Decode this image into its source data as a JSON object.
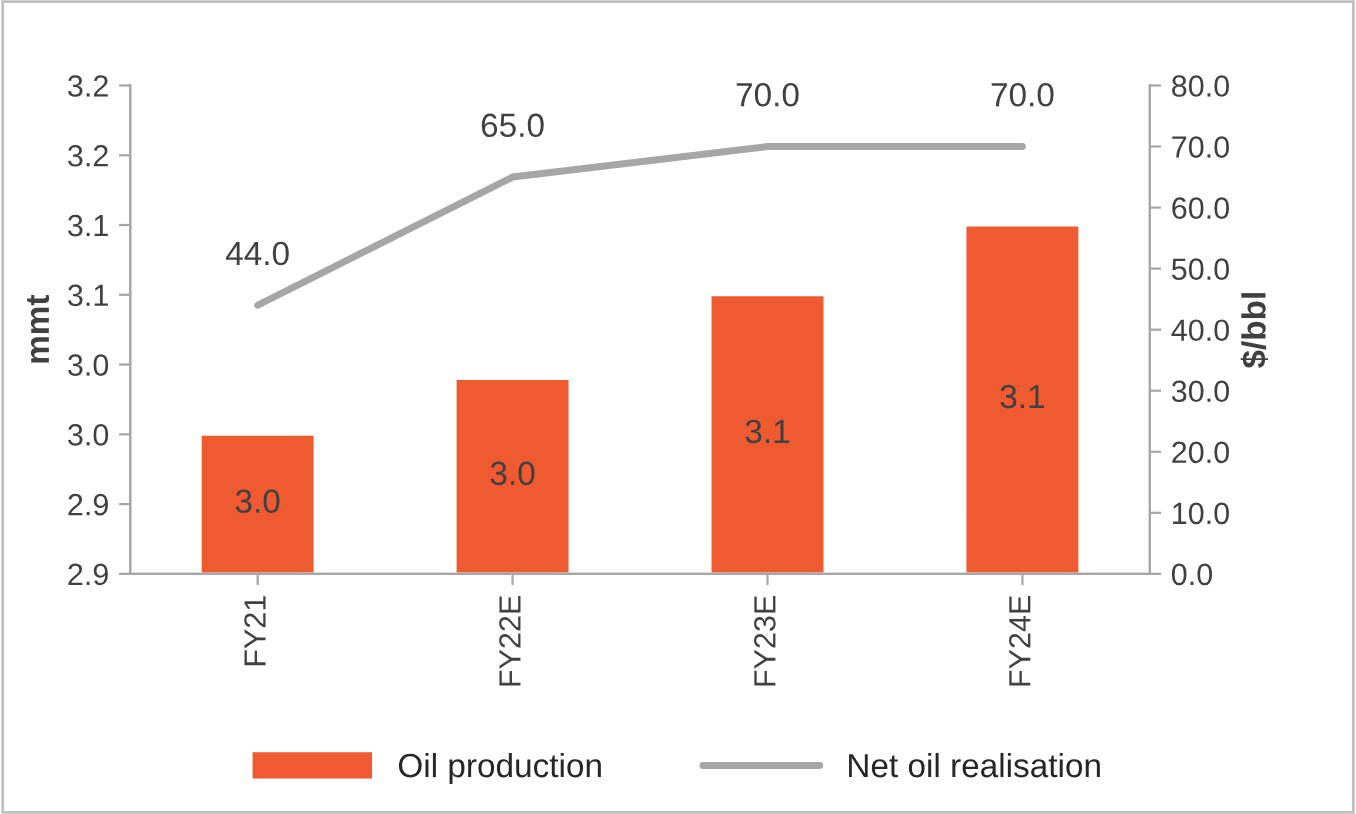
{
  "chart_data": {
    "type": "bar",
    "categories": [
      "FY21",
      "FY22E",
      "FY23E",
      "FY24E"
    ],
    "ylabel": "mmt",
    "y2label": "$/bbl",
    "series": [
      {
        "name": "Oil production",
        "color": "#f05a30",
        "values": [
          2.95,
          2.99,
          3.05,
          3.1
        ],
        "value_labels": [
          "3.0",
          "3.0",
          "3.1",
          "3.1"
        ]
      },
      {
        "name": "Net oil realisation",
        "type": "line",
        "axis": "y2",
        "color": "#a6a6a6",
        "values": [
          44.0,
          65.0,
          70.0,
          70.0
        ],
        "value_labels": [
          "44.0",
          "65.0",
          "70.0",
          "70.0"
        ]
      }
    ],
    "ylim": [
      2.85,
      3.2
    ],
    "yticks": [
      {
        "value": 2.85,
        "label": "2.9"
      },
      {
        "value": 2.9,
        "label": "2.9"
      },
      {
        "value": 2.95,
        "label": "3.0"
      },
      {
        "value": 3.0,
        "label": "3.0"
      },
      {
        "value": 3.05,
        "label": "3.1"
      },
      {
        "value": 3.1,
        "label": "3.1"
      },
      {
        "value": 3.15,
        "label": "3.2"
      },
      {
        "value": 3.2,
        "label": "3.2"
      }
    ],
    "y2lim": [
      0,
      80
    ],
    "y2ticks": [
      {
        "value": 0,
        "label": "0.0"
      },
      {
        "value": 10,
        "label": "10.0"
      },
      {
        "value": 20,
        "label": "20.0"
      },
      {
        "value": 30,
        "label": "30.0"
      },
      {
        "value": 40,
        "label": "40.0"
      },
      {
        "value": 50,
        "label": "50.0"
      },
      {
        "value": 60,
        "label": "60.0"
      },
      {
        "value": 70,
        "label": "70.0"
      },
      {
        "value": 80,
        "label": "80.0"
      }
    ],
    "grid": false,
    "legend": "bottom"
  }
}
